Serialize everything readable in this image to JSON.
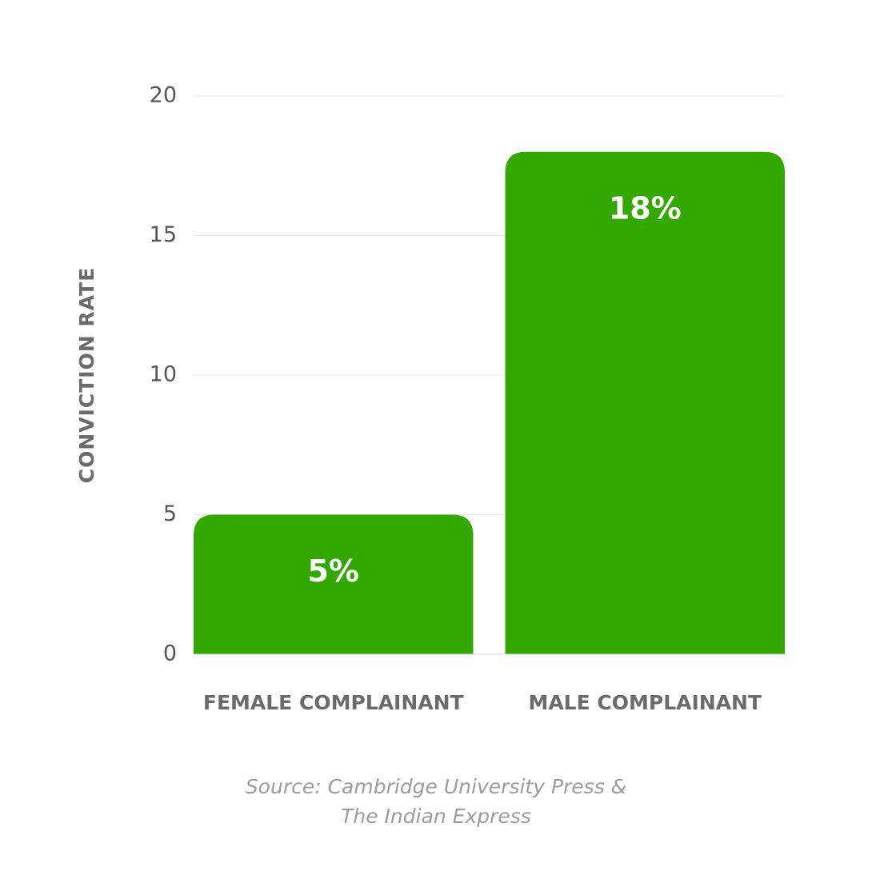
{
  "chart_data": {
    "type": "bar",
    "title": "",
    "xlabel": "",
    "ylabel": "CONVICTION RATE",
    "ylim": [
      0,
      20
    ],
    "yticks": [
      "0",
      "5",
      "10",
      "15",
      "20"
    ],
    "grid": true,
    "categories": [
      "FEMALE COMPLAINANT",
      "MALE COMPLAINANT"
    ],
    "values": [
      5,
      18
    ],
    "data_labels": [
      "5%",
      "18%"
    ],
    "colors": {
      "bar": "#33a800",
      "grid": "#e8e8e8",
      "axis_text": "#555555",
      "label_text": "#6b6b6b",
      "data_label": "#ffffff"
    }
  },
  "source": {
    "line1": "Source: Cambridge University Press &",
    "line2": "The Indian Express"
  }
}
